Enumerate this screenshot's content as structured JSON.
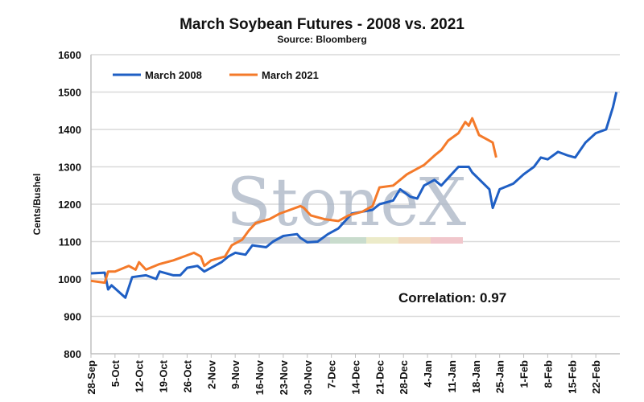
{
  "chart_data": {
    "type": "line",
    "title": "March Soybean Futures - 2008 vs. 2021",
    "subtitle": "Source: Bloomberg",
    "xlabel": "",
    "ylabel": "Cents/Bushel",
    "ylim": [
      800,
      1600
    ],
    "yticks": [
      800,
      900,
      1000,
      1100,
      1200,
      1300,
      1400,
      1500,
      1600
    ],
    "x_unit": "days since 28-Sep",
    "xlim": [
      0,
      154
    ],
    "xtick_labels": [
      "28-Sep",
      "5-Oct",
      "12-Oct",
      "19-Oct",
      "26-Oct",
      "2-Nov",
      "9-Nov",
      "16-Nov",
      "23-Nov",
      "30-Nov",
      "7-Dec",
      "14-Dec",
      "21-Dec",
      "28-Dec",
      "4-Jan",
      "11-Jan",
      "18-Jan",
      "25-Jan",
      "1-Feb",
      "8-Feb",
      "15-Feb",
      "22-Feb"
    ],
    "grid": "horizontal",
    "legend_position": "top-left",
    "annotation": "Correlation: 0.97",
    "watermark": "StoneX",
    "series": [
      {
        "name": "March 2008",
        "color": "#1f5fc4",
        "points": [
          [
            0,
            1015
          ],
          [
            4,
            1017
          ],
          [
            5,
            972
          ],
          [
            6,
            983
          ],
          [
            10,
            950
          ],
          [
            12,
            1005
          ],
          [
            16,
            1010
          ],
          [
            19,
            1000
          ],
          [
            20,
            1020
          ],
          [
            24,
            1010
          ],
          [
            26,
            1010
          ],
          [
            28,
            1030
          ],
          [
            31,
            1035
          ],
          [
            33,
            1020
          ],
          [
            35,
            1030
          ],
          [
            38,
            1045
          ],
          [
            40,
            1060
          ],
          [
            42,
            1070
          ],
          [
            45,
            1065
          ],
          [
            47,
            1090
          ],
          [
            51,
            1085
          ],
          [
            53,
            1100
          ],
          [
            56,
            1115
          ],
          [
            60,
            1120
          ],
          [
            61,
            1110
          ],
          [
            63,
            1098
          ],
          [
            66,
            1100
          ],
          [
            69,
            1120
          ],
          [
            72,
            1135
          ],
          [
            74,
            1155
          ],
          [
            76,
            1175
          ],
          [
            79,
            1180
          ],
          [
            82,
            1185
          ],
          [
            84,
            1200
          ],
          [
            88,
            1210
          ],
          [
            90,
            1240
          ],
          [
            93,
            1220
          ],
          [
            95,
            1215
          ],
          [
            97,
            1250
          ],
          [
            100,
            1265
          ],
          [
            102,
            1250
          ],
          [
            104,
            1270
          ],
          [
            107,
            1300
          ],
          [
            110,
            1300
          ],
          [
            111,
            1285
          ],
          [
            116,
            1240
          ],
          [
            117,
            1190
          ],
          [
            119,
            1240
          ],
          [
            123,
            1255
          ],
          [
            126,
            1280
          ],
          [
            129,
            1300
          ],
          [
            131,
            1325
          ],
          [
            133,
            1320
          ],
          [
            136,
            1340
          ],
          [
            139,
            1330
          ],
          [
            141,
            1325
          ],
          [
            144,
            1365
          ],
          [
            147,
            1390
          ],
          [
            150,
            1400
          ],
          [
            152,
            1460
          ],
          [
            153,
            1500
          ]
        ]
      },
      {
        "name": "March 2021",
        "color": "#f47a2a",
        "points": [
          [
            0,
            995
          ],
          [
            4,
            990
          ],
          [
            5,
            1020
          ],
          [
            7,
            1020
          ],
          [
            11,
            1035
          ],
          [
            13,
            1025
          ],
          [
            14,
            1045
          ],
          [
            16,
            1025
          ],
          [
            20,
            1040
          ],
          [
            24,
            1050
          ],
          [
            27,
            1060
          ],
          [
            30,
            1070
          ],
          [
            32,
            1060
          ],
          [
            33,
            1035
          ],
          [
            35,
            1050
          ],
          [
            39,
            1060
          ],
          [
            41,
            1090
          ],
          [
            44,
            1105
          ],
          [
            46,
            1130
          ],
          [
            48,
            1150
          ],
          [
            52,
            1160
          ],
          [
            55,
            1175
          ],
          [
            58,
            1185
          ],
          [
            61,
            1195
          ],
          [
            62,
            1190
          ],
          [
            64,
            1170
          ],
          [
            68,
            1160
          ],
          [
            72,
            1155
          ],
          [
            75,
            1170
          ],
          [
            79,
            1180
          ],
          [
            82,
            1195
          ],
          [
            84,
            1245
          ],
          [
            88,
            1250
          ],
          [
            90,
            1265
          ],
          [
            92,
            1280
          ],
          [
            95,
            1295
          ],
          [
            97,
            1305
          ],
          [
            100,
            1330
          ],
          [
            102,
            1345
          ],
          [
            104,
            1370
          ],
          [
            107,
            1390
          ],
          [
            109,
            1420
          ],
          [
            110,
            1410
          ],
          [
            111,
            1430
          ],
          [
            113,
            1385
          ],
          [
            116,
            1370
          ],
          [
            117,
            1365
          ],
          [
            118,
            1325
          ]
        ]
      }
    ]
  }
}
